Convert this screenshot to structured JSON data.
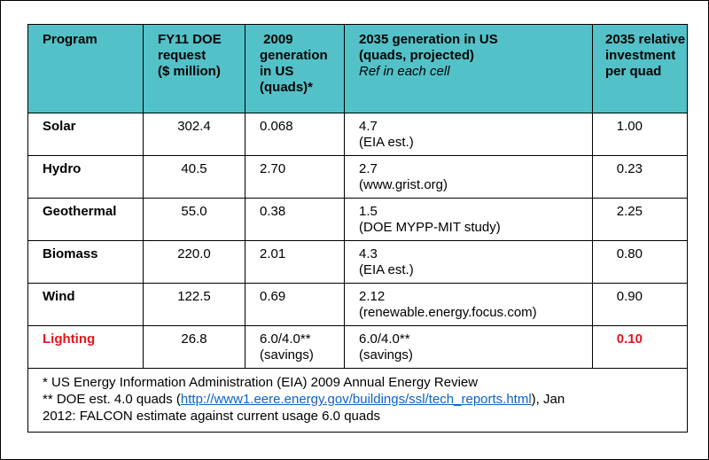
{
  "headers": {
    "program": "Program",
    "fy11": [
      "FY11 DOE",
      "request",
      "($ million)"
    ],
    "gen2009": [
      " 2009",
      "generation",
      "in US",
      "(quads)*"
    ],
    "gen2035": [
      "2035 generation in US",
      "(quads, projected)"
    ],
    "gen2035_ref": "Ref in each cell",
    "relinv": [
      "2035 relative",
      "investment",
      "per quad"
    ]
  },
  "rows": [
    {
      "program": "Solar",
      "fy11": "302.4",
      "gen2009": "0.068",
      "gen2035": "4.7",
      "ref": "(EIA est.)",
      "relinv": "1.00"
    },
    {
      "program": "Hydro",
      "fy11": "40.5",
      "gen2009": "2.70",
      "gen2035": "2.7",
      "ref": "(www.grist.org)",
      "relinv": "0.23"
    },
    {
      "program": "Geothermal",
      "fy11": "55.0",
      "gen2009": "0.38",
      "gen2035": "1.5",
      "ref": "(DOE MYPP-MIT study)",
      "relinv": "2.25"
    },
    {
      "program": "Biomass",
      "fy11": "220.0",
      "gen2009": "2.01",
      "gen2035": "4.3",
      "ref": "(EIA est.)",
      "relinv": "0.80"
    },
    {
      "program": "Wind",
      "fy11": "122.5",
      "gen2009": "0.69",
      "gen2035": "2.12",
      "ref": "(renewable.energy.focus.com)",
      "relinv": "0.90"
    },
    {
      "program": "Lighting",
      "fy11": "26.8",
      "gen2009": "6.0/4.0**",
      "gen2009_sub": "(savings)",
      "gen2035": "6.0/4.0**",
      "ref": "(savings)",
      "relinv": "0.10"
    }
  ],
  "notes": {
    "line1": "* US Energy Information Administration (EIA) 2009 Annual Energy Review",
    "line2_pre": "** DOE est. 4.0 quads (",
    "line2_link": "http://www1.eere.energy.gov/buildings/ssl/tech_reports.html",
    "line2_post": "), Jan",
    "line3": "2012: FALCON estimate against current usage 6.0 quads"
  },
  "colors": {
    "header_bg": "#53c1c8",
    "highlight_red": "#e8141c",
    "link_blue": "#0b63c8"
  }
}
